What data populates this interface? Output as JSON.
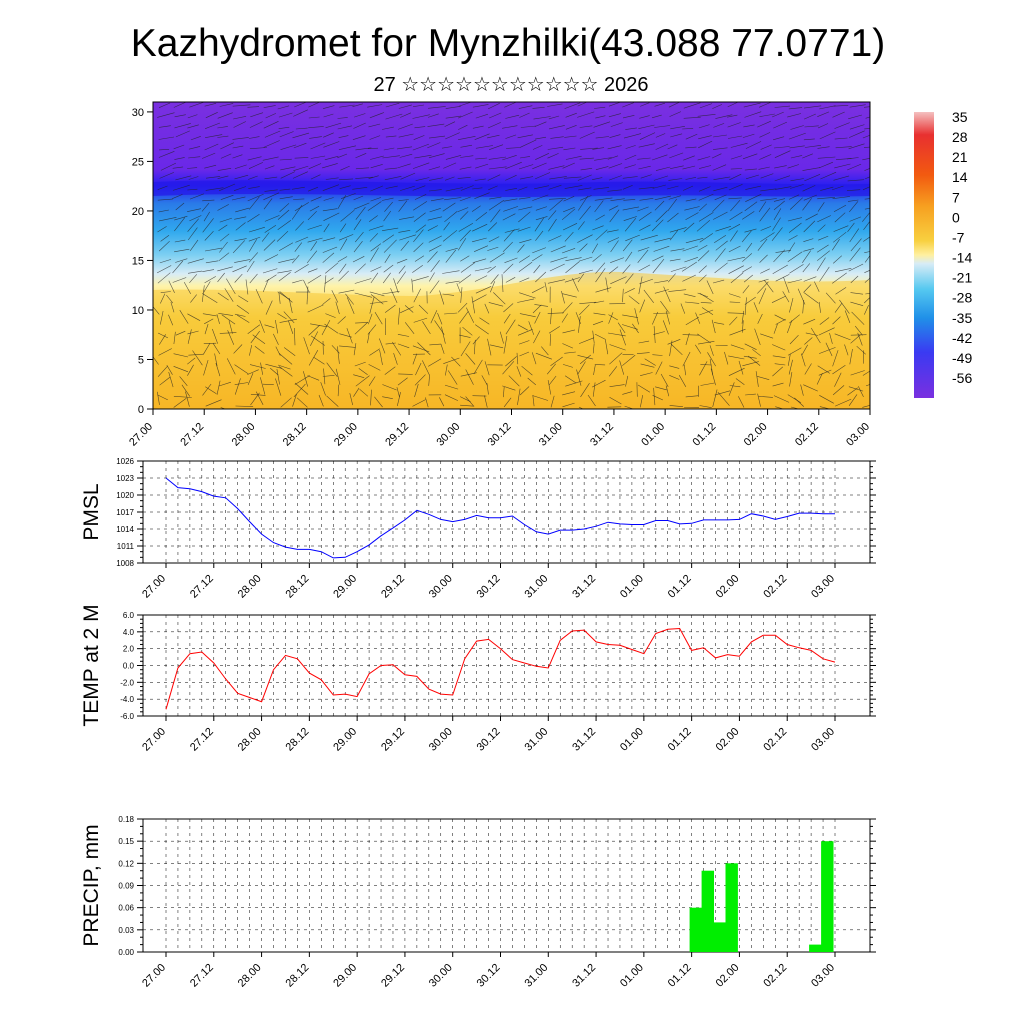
{
  "title": "Kazhydromet for Mynzhilki(43.088 77.0771)",
  "subtitle": "27 ☆☆☆☆☆☆☆☆☆☆☆ 2026",
  "x_tick_labels": [
    "27.00",
    "27.12",
    "28.00",
    "28.12",
    "29.00",
    "29.12",
    "30.00",
    "30.12",
    "31.00",
    "31.12",
    "01.00",
    "01.12",
    "02.00",
    "02.12",
    "03.00"
  ],
  "chart_data": [
    {
      "type": "heatmap",
      "name": "cross-section",
      "y_ticks": [
        "0",
        "5",
        "10",
        "15",
        "20",
        "25",
        "30"
      ],
      "ylim": [
        0,
        31
      ],
      "colorbar": {
        "labels": [
          "35",
          "28",
          "21",
          "14",
          "7",
          "0",
          "-7",
          "-14",
          "-21",
          "-28",
          "-35",
          "-42",
          "-49",
          "-56"
        ],
        "colors": [
          "#f2a0a0",
          "#e02020",
          "#f24a10",
          "#f78a1a",
          "#f7b020",
          "#f8d040",
          "#fff0a0",
          "#cfe8f4",
          "#55c8f0",
          "#20a0e8",
          "#2a6ee8",
          "#3a3af2",
          "#4a20e8",
          "#7a30e0"
        ]
      }
    },
    {
      "type": "line",
      "name": "PMSL",
      "ylabel": "PMSL",
      "ylim": [
        1008,
        1026
      ],
      "y_ticks": [
        "1008",
        "1011",
        "1014",
        "1017",
        "1020",
        "1023",
        "1026"
      ],
      "color": "#0000ff",
      "values": [
        1023,
        1021.3,
        1021.1,
        1020.6,
        1019.8,
        1019.5,
        1017.6,
        1015.3,
        1013.1,
        1011.6,
        1010.8,
        1010.4,
        1010.4,
        1010,
        1008.9,
        1009,
        1010,
        1011.2,
        1012.8,
        1014.2,
        1015.6,
        1017.3,
        1016.6,
        1015.7,
        1015.3,
        1015.7,
        1016.4,
        1016,
        1016,
        1016.3,
        1014.8,
        1013.5,
        1013.1,
        1013.8,
        1013.8,
        1014,
        1014.5,
        1015.2,
        1014.9,
        1014.8,
        1014.8,
        1015.5,
        1015.5,
        1014.9,
        1015,
        1015.6,
        1015.6,
        1015.6,
        1015.7,
        1016.7,
        1016.3,
        1015.7,
        1016.2,
        1016.8,
        1016.8,
        1016.7,
        1016.7
      ]
    },
    {
      "type": "line",
      "name": "TEMP at 2 M",
      "ylabel": "TEMP at 2 M",
      "ylim": [
        -6,
        6
      ],
      "y_ticks": [
        "-6.0",
        "-4.0",
        "-2.0",
        "0.0",
        "2.0",
        "4.0",
        "6.0"
      ],
      "color": "#ff0000",
      "values": [
        -5.2,
        -0.3,
        1.4,
        1.6,
        0.3,
        -1.6,
        -3.3,
        -3.8,
        -4.3,
        -0.5,
        1.2,
        0.8,
        -0.9,
        -1.7,
        -3.5,
        -3.4,
        -3.7,
        -1.0,
        0.0,
        0.1,
        -1.1,
        -1.3,
        -2.8,
        -3.4,
        -3.5,
        0.8,
        2.9,
        3.1,
        2.0,
        0.7,
        0.3,
        -0.1,
        -0.3,
        3.0,
        4.1,
        4.2,
        2.8,
        2.5,
        2.4,
        1.9,
        1.4,
        3.8,
        4.3,
        4.4,
        1.8,
        2.1,
        0.9,
        1.3,
        1.1,
        2.8,
        3.6,
        3.6,
        2.5,
        2.1,
        1.8,
        0.8,
        0.4
      ]
    },
    {
      "type": "bar",
      "name": "PRECIP, mm",
      "ylabel": "PRECIP, mm",
      "ylim": [
        0,
        0.18
      ],
      "y_ticks": [
        "0.00",
        "0.03",
        "0.06",
        "0.09",
        "0.12",
        "0.15",
        "0.18"
      ],
      "color": "#00ee00",
      "bars": [
        {
          "x": 44,
          "value": 0.06
        },
        {
          "x": 45,
          "value": 0.11
        },
        {
          "x": 46,
          "value": 0.04
        },
        {
          "x": 47,
          "value": 0.12
        },
        {
          "x": 54,
          "value": 0.01
        },
        {
          "x": 55,
          "value": 0.15
        }
      ]
    }
  ]
}
